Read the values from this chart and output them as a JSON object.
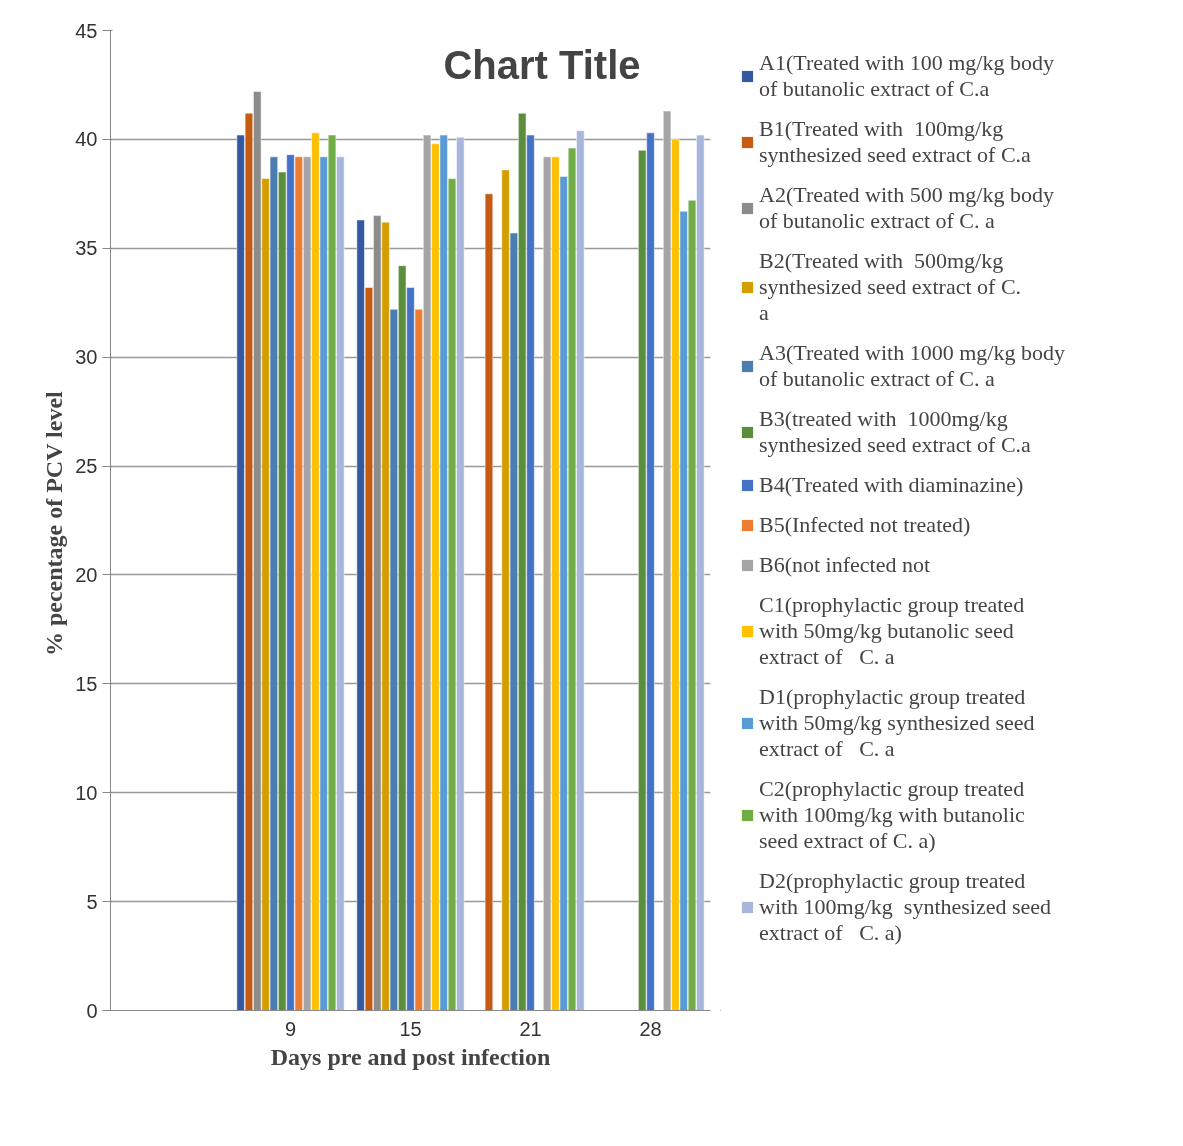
{
  "chart_data": {
    "type": "bar",
    "title": "Chart Title",
    "xlabel": "Days pre and post infection",
    "ylabel": "% pecentage of  PCV level",
    "categories": [
      null,
      "9",
      "15",
      "21",
      "28"
    ],
    "ylim": [
      0,
      45
    ],
    "yticks": [
      0,
      5,
      10,
      15,
      20,
      25,
      30,
      35,
      40,
      45
    ],
    "grid": "y",
    "legend": "right",
    "series": [
      {
        "name": "A1(Treated with 100 mg/kg body of butanolic extract of C.a",
        "color": "#335aa0",
        "values": [
          null,
          40.2,
          36.3,
          null,
          null
        ]
      },
      {
        "name": "B1(Treated with  100mg/kg synthesized seed extract of C.a",
        "color": "#c55a11",
        "values": [
          null,
          41.2,
          33.2,
          37.5,
          null
        ]
      },
      {
        "name": "A2(Treated with 500 mg/kg body of butanolic extract of C. a",
        "color": "#8c8c8c",
        "values": [
          null,
          42.2,
          36.5,
          null,
          null
        ]
      },
      {
        "name": "B2(Treated with  500mg/kg synthesized seed extract of C. a",
        "color": "#d49e00",
        "values": [
          null,
          38.2,
          36.2,
          38.6,
          null
        ]
      },
      {
        "name": "A3(Treated with 1000 mg/kg body of butanolic extract of C. a",
        "color": "#4a7eb0",
        "values": [
          null,
          39.2,
          32.2,
          35.7,
          null
        ]
      },
      {
        "name": "B3(treated with  1000mg/kg synthesized seed extract of C.a",
        "color": "#5a8e3a",
        "values": [
          null,
          38.5,
          34.2,
          41.2,
          39.5
        ]
      },
      {
        "name": "B4(Treated with diaminazine)",
        "color": "#4472c4",
        "values": [
          null,
          39.3,
          33.2,
          40.2,
          40.3
        ]
      },
      {
        "name": "B5(Infected not treated)",
        "color": "#ed7d31",
        "values": [
          null,
          39.2,
          32.2,
          null,
          null
        ]
      },
      {
        "name": "B6(not infected not",
        "color": "#a5a5a5",
        "values": [
          null,
          39.2,
          40.2,
          39.2,
          41.3
        ]
      },
      {
        "name": "C1(prophylactic group treated with 50mg/kg butanolic seed extract of   C. a",
        "color": "#ffc000",
        "values": [
          null,
          40.3,
          39.8,
          39.2,
          40.0
        ]
      },
      {
        "name": "D1(prophylactic group treated with 50mg/kg synthesized seed extract of   C. a",
        "color": "#5b9bd5",
        "values": [
          null,
          39.2,
          40.2,
          38.3,
          36.7
        ]
      },
      {
        "name": "C2(prophylactic group treated with 100mg/kg with butanolic seed extract of C. a)",
        "color": "#70ad47",
        "values": [
          null,
          40.2,
          38.2,
          39.6,
          37.2
        ]
      },
      {
        "name": "D2(prophylactic group treated with 100mg/kg  synthesized seed extract of   C. a)",
        "color": "#a9b6dc",
        "values": [
          null,
          39.2,
          40.1,
          40.4,
          40.2
        ]
      }
    ]
  }
}
